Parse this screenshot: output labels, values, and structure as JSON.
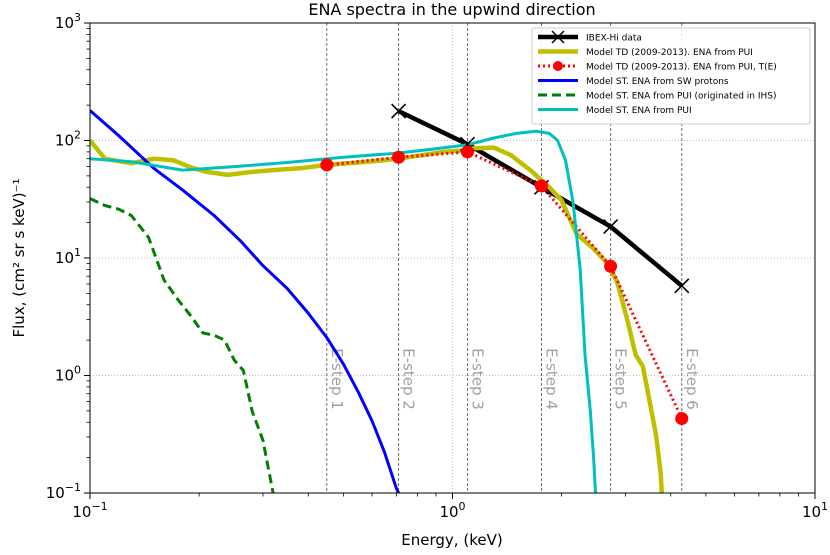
{
  "chart_data": {
    "type": "line",
    "title": "ENA spectra in the upwind direction",
    "xlabel": "Energy, (keV)",
    "ylabel": "Flux, (cm² sr s keV)⁻¹",
    "xscale": "log",
    "yscale": "log",
    "xlim": [
      0.1,
      10
    ],
    "ylim": [
      0.1,
      1000
    ],
    "x_ticks": [
      {
        "value": 0.1,
        "base": "10",
        "exp": "−1"
      },
      {
        "value": 1,
        "base": "10",
        "exp": "0"
      },
      {
        "value": 10,
        "base": "10",
        "exp": "1"
      }
    ],
    "y_ticks": [
      {
        "value": 0.1,
        "base": "10",
        "exp": "−1"
      },
      {
        "value": 1,
        "base": "10",
        "exp": "0"
      },
      {
        "value": 10,
        "base": "10",
        "exp": "1"
      },
      {
        "value": 100,
        "base": "10",
        "exp": "2"
      },
      {
        "value": 1000,
        "base": "10",
        "exp": "3"
      }
    ],
    "grid": true,
    "legend_position": "top-right",
    "energy_steps": [
      {
        "label": "E-step 1",
        "energy": 0.45
      },
      {
        "label": "E-step 2",
        "energy": 0.71
      },
      {
        "label": "E-step 3",
        "energy": 1.1
      },
      {
        "label": "E-step 4",
        "energy": 1.76
      },
      {
        "label": "E-step 5",
        "energy": 2.73
      },
      {
        "label": "E-step 6",
        "energy": 4.29
      }
    ],
    "series": [
      {
        "name": "IBEX-Hi data",
        "color": "#000000",
        "style": "solid",
        "width": 4.5,
        "marker": "x",
        "points": [
          [
            0.71,
            178
          ],
          [
            1.1,
            93
          ],
          [
            1.76,
            40
          ],
          [
            2.73,
            18.5
          ],
          [
            4.29,
            5.8
          ]
        ]
      },
      {
        "name": "Model TD (2009-2013). ENA from PUI",
        "color": "#bfbf00",
        "style": "solid",
        "width": 4.5,
        "marker": "none",
        "points": [
          [
            0.1,
            100
          ],
          [
            0.11,
            70
          ],
          [
            0.13,
            64
          ],
          [
            0.15,
            70
          ],
          [
            0.17,
            68
          ],
          [
            0.19,
            59
          ],
          [
            0.21,
            54
          ],
          [
            0.24,
            51
          ],
          [
            0.28,
            54
          ],
          [
            0.32,
            56
          ],
          [
            0.38,
            58
          ],
          [
            0.45,
            62
          ],
          [
            0.55,
            65
          ],
          [
            0.65,
            68
          ],
          [
            0.75,
            72
          ],
          [
            0.85,
            76
          ],
          [
            0.95,
            80
          ],
          [
            1.05,
            82
          ],
          [
            1.15,
            86
          ],
          [
            1.3,
            87
          ],
          [
            1.45,
            75
          ],
          [
            1.65,
            55
          ],
          [
            1.85,
            40
          ],
          [
            2.0,
            31
          ],
          [
            2.2,
            16
          ],
          [
            2.45,
            12
          ],
          [
            2.65,
            9.3
          ],
          [
            2.85,
            6.2
          ],
          [
            3.05,
            2.8
          ],
          [
            3.2,
            1.5
          ],
          [
            3.35,
            1.2
          ],
          [
            3.5,
            0.6
          ],
          [
            3.65,
            0.3
          ],
          [
            3.75,
            0.15
          ],
          [
            3.78,
            0.1
          ]
        ]
      },
      {
        "name": "Model TD (2009-2013). ENA from PUI, T(E)",
        "color": "#ff0000",
        "style": "dotted",
        "width": 3,
        "marker": "o",
        "points": [
          [
            0.45,
            62
          ],
          [
            0.71,
            72
          ],
          [
            1.1,
            80
          ],
          [
            1.76,
            41
          ],
          [
            2.73,
            8.5
          ],
          [
            4.29,
            0.43
          ]
        ]
      },
      {
        "name": "Model ST. ENA from SW protons",
        "color": "#0000ff",
        "style": "solid",
        "width": 3,
        "marker": "none",
        "points": [
          [
            0.1,
            180
          ],
          [
            0.12,
            110
          ],
          [
            0.15,
            58
          ],
          [
            0.18,
            38
          ],
          [
            0.22,
            23
          ],
          [
            0.26,
            14
          ],
          [
            0.3,
            8.6
          ],
          [
            0.35,
            5.5
          ],
          [
            0.4,
            3.4
          ],
          [
            0.45,
            2.1
          ],
          [
            0.5,
            1.25
          ],
          [
            0.55,
            0.72
          ],
          [
            0.6,
            0.41
          ],
          [
            0.65,
            0.22
          ],
          [
            0.7,
            0.11
          ],
          [
            0.71,
            0.1
          ]
        ]
      },
      {
        "name": "Model ST. ENA from PUI (originated in IHS)",
        "color": "#008000",
        "style": "dashed",
        "width": 3,
        "marker": "none",
        "points": [
          [
            0.1,
            32
          ],
          [
            0.11,
            28
          ],
          [
            0.12,
            26
          ],
          [
            0.13,
            23
          ],
          [
            0.145,
            15
          ],
          [
            0.16,
            6.5
          ],
          [
            0.175,
            4.4
          ],
          [
            0.19,
            3.2
          ],
          [
            0.205,
            2.3
          ],
          [
            0.22,
            2.2
          ],
          [
            0.235,
            2.0
          ],
          [
            0.25,
            1.35
          ],
          [
            0.265,
            1.1
          ],
          [
            0.28,
            0.5
          ],
          [
            0.3,
            0.28
          ],
          [
            0.32,
            0.1
          ]
        ]
      },
      {
        "name": "Model ST. ENA from PUI",
        "color": "#00bfbf",
        "style": "solid",
        "width": 3,
        "marker": "none",
        "points": [
          [
            0.1,
            70
          ],
          [
            0.13,
            66
          ],
          [
            0.18,
            56
          ],
          [
            0.25,
            60
          ],
          [
            0.35,
            65
          ],
          [
            0.5,
            72
          ],
          [
            0.7,
            78
          ],
          [
            0.9,
            85
          ],
          [
            1.1,
            92
          ],
          [
            1.3,
            105
          ],
          [
            1.5,
            115
          ],
          [
            1.7,
            120
          ],
          [
            1.85,
            115
          ],
          [
            1.95,
            100
          ],
          [
            2.05,
            68
          ],
          [
            2.15,
            30
          ],
          [
            2.25,
            8
          ],
          [
            2.32,
            1.5
          ],
          [
            2.4,
            0.5
          ],
          [
            2.45,
            0.2
          ],
          [
            2.48,
            0.1
          ]
        ]
      }
    ]
  }
}
